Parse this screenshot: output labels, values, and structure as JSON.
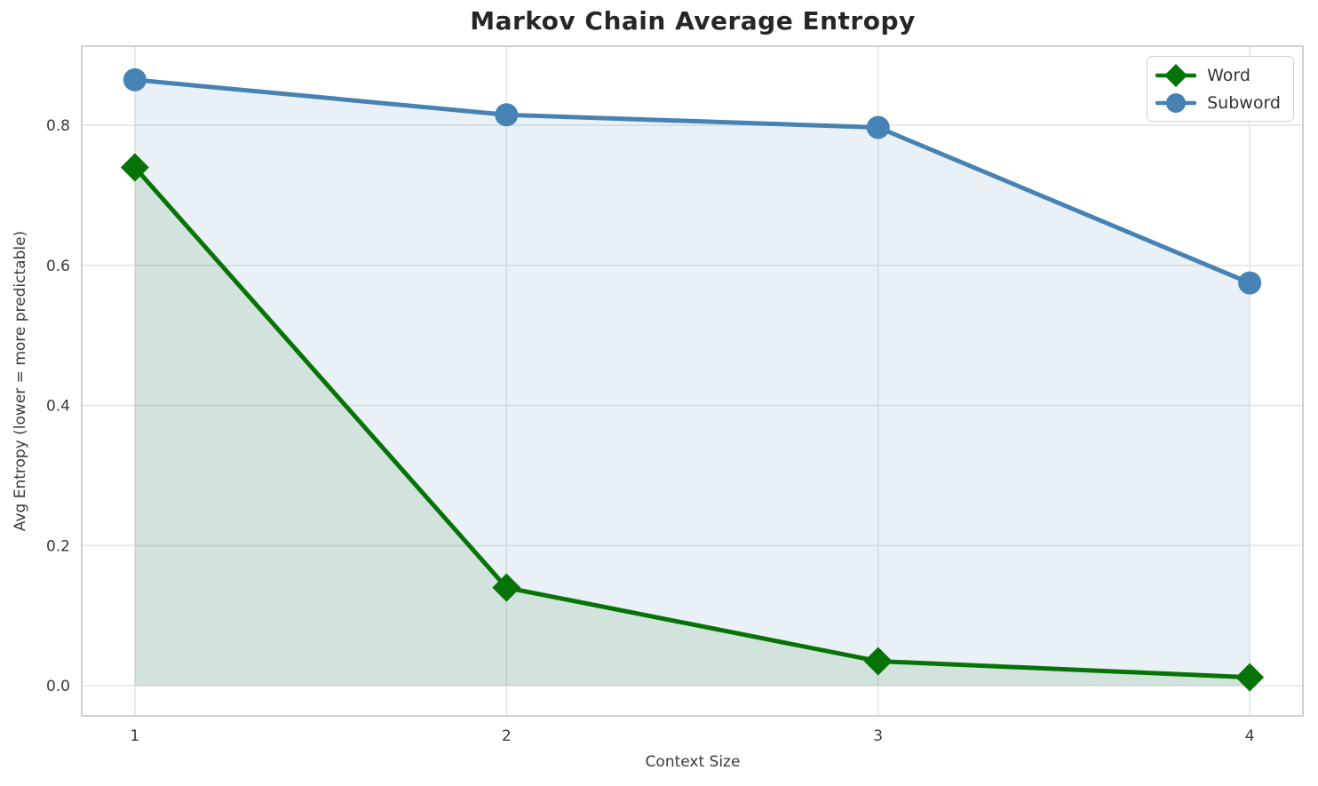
{
  "chart_data": {
    "type": "line",
    "title": "Markov Chain Average Entropy",
    "xlabel": "Context Size",
    "ylabel": "Avg Entropy (lower = more predictable)",
    "x": [
      1,
      2,
      3,
      4
    ],
    "series": [
      {
        "name": "Word",
        "values": [
          0.74,
          0.14,
          0.035,
          0.012
        ],
        "color": "#067306",
        "marker": "diamond",
        "fill_alpha": 0.1
      },
      {
        "name": "Subword",
        "values": [
          0.865,
          0.815,
          0.797,
          0.575
        ],
        "color": "#4682b4",
        "marker": "circle",
        "fill_alpha": 0.12
      }
    ],
    "xticks": [
      1,
      2,
      3,
      4
    ],
    "xtick_labels": [
      "1",
      "2",
      "3",
      "4"
    ],
    "yticks": [
      0.0,
      0.2,
      0.4,
      0.6,
      0.8
    ],
    "ytick_labels": [
      "0.0",
      "0.2",
      "0.4",
      "0.6",
      "0.8"
    ],
    "xlim": [
      0.857,
      4.143
    ],
    "ylim": [
      -0.043,
      0.913
    ],
    "grid": true,
    "legend_position": "upper right",
    "fill_baseline": 0
  },
  "style_colors": {
    "background": "#ffffff",
    "grid": "#e6e6e6",
    "spine": "#d0d0d0",
    "tick_text": "#3a3a3a",
    "title_text": "#262626",
    "legend_border": "#d3d3d3"
  }
}
